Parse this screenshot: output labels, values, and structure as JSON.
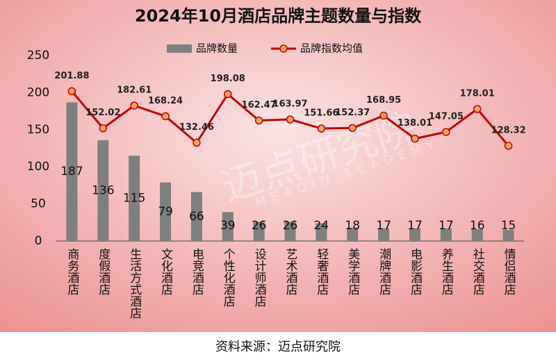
{
  "chart_data": {
    "type": "bar-line",
    "title": "2024年10月酒店品牌主题数量与指数",
    "source": "资料来源：迈点研究院",
    "watermark": "迈点研究院",
    "watermark_sub": "MEADIN ACADEMY",
    "categories": [
      "商务酒店",
      "度假酒店",
      "生活方式酒店",
      "文化酒店",
      "电竞酒店",
      "个性化酒店",
      "设计师酒店",
      "艺术酒店",
      "轻奢酒店",
      "美学酒店",
      "潮牌酒店",
      "电影酒店",
      "养生酒店",
      "社交酒店",
      "情侣酒店"
    ],
    "series": [
      {
        "name": "品牌数量",
        "type": "bar",
        "color": "#7f7f7f",
        "values": [
          187,
          136,
          115,
          79,
          66,
          39,
          26,
          26,
          24,
          18,
          17,
          17,
          17,
          16,
          15
        ]
      },
      {
        "name": "品牌指数均值",
        "type": "line",
        "color": "#c00000",
        "marker_color": "#f4a460",
        "values": [
          201.88,
          152.02,
          182.61,
          168.24,
          132.46,
          198.08,
          162.47,
          163.97,
          151.66,
          152.37,
          168.95,
          138.01,
          147.05,
          178.01,
          128.32
        ]
      }
    ],
    "ylim": [
      0,
      250
    ],
    "yticks": [
      0,
      50,
      100,
      150,
      200,
      250
    ],
    "grid": false
  }
}
